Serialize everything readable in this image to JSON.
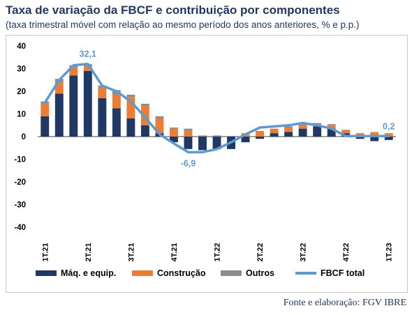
{
  "title": "Taxa de variação da FBCF e contribuição por componentes",
  "subtitle": "(taxa trimestral móvel com relação ao mesmo período dos anos anteriores, % e p.p.)",
  "source": "Fonte e elaboração: FGV IBRE",
  "colors": {
    "maq": "#1f3864",
    "construcao": "#ed7d31",
    "outros": "#8c8c8c",
    "fbcf": "#5b9bd5",
    "annotation": "#5b9bd5",
    "axis_text": "#000000"
  },
  "chart_data": {
    "type": "bar",
    "stacked": true,
    "ylim": [
      -40,
      40
    ],
    "yticks": [
      40,
      30,
      20,
      10,
      0,
      -10,
      -20,
      -30,
      -40
    ],
    "xtick_labels": [
      "1T.21",
      "2T.21",
      "3T.21",
      "4T.21",
      "1T.22",
      "2T.22",
      "3T.22",
      "4T.22",
      "1T.23"
    ],
    "xtick_positions": [
      0,
      3,
      6,
      9,
      12,
      15,
      18,
      21,
      24
    ],
    "n_periods": 25,
    "series": [
      {
        "name": "Máq. e equip.",
        "type": "bar",
        "values": [
          9,
          19,
          27,
          29,
          17,
          12.5,
          8,
          5,
          1.5,
          -2.5,
          -5.5,
          -6,
          -5.5,
          -5.5,
          -2.5,
          -1,
          1.5,
          2,
          3.5,
          4.5,
          3.5,
          1.5,
          -1,
          -2,
          -1.5
        ]
      },
      {
        "name": "Construção",
        "type": "bar",
        "values": [
          5.5,
          5,
          3.5,
          2,
          4.5,
          6,
          9.5,
          8.5,
          6.5,
          3.5,
          2.5,
          0,
          0,
          0,
          1.5,
          2.5,
          2,
          2,
          1.5,
          1,
          1.5,
          1.5,
          1.5,
          2,
          1.5
        ]
      },
      {
        "name": "Outros",
        "type": "bar",
        "values": [
          1,
          1.5,
          1,
          1,
          1,
          2,
          1,
          1,
          1,
          0.5,
          1,
          0.5,
          0.5,
          0,
          0,
          0,
          0,
          0.5,
          0.5,
          0.5,
          0.5,
          0,
          0,
          0,
          0
        ]
      },
      {
        "name": "FBCF total",
        "type": "line",
        "values": [
          15,
          25,
          31.5,
          32.1,
          22.5,
          20,
          15.5,
          8.5,
          1,
          -3,
          -6.9,
          -6.9,
          -5.5,
          -2.5,
          1,
          4,
          4.5,
          5,
          6,
          5,
          3.5,
          0.2,
          0.2,
          0.2,
          0.2
        ]
      }
    ],
    "annotations": [
      {
        "text": "32,1",
        "index": 3,
        "value": 32.1,
        "position": "above"
      },
      {
        "text": "-6,9",
        "index": 10,
        "value": -6.9,
        "position": "below"
      },
      {
        "text": "0,2",
        "index": 24,
        "value": 0.2,
        "position": "above"
      }
    ],
    "legend": {
      "position": "bottom",
      "items": [
        "Máq. e equip.",
        "Construção",
        "Outros",
        "FBCF total"
      ]
    },
    "grid": false
  }
}
